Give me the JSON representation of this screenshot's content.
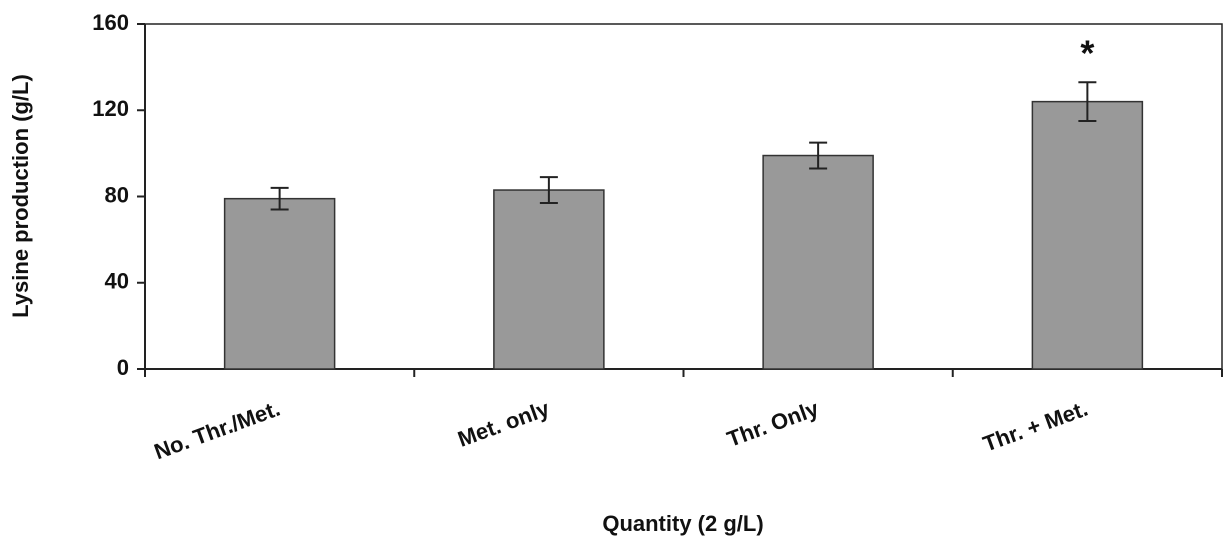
{
  "chart_data": {
    "type": "bar",
    "x_label": "Quantity (2 g/L)",
    "y_label": "Lysine production (g/L)",
    "categories": [
      "No. Thr./Met.",
      "Met. only",
      "Thr. Only",
      "Thr. + Met."
    ],
    "values": [
      79,
      83,
      99,
      124
    ],
    "errors": [
      5,
      6,
      6,
      9
    ],
    "color": "#999999",
    "ylim": [
      0,
      160
    ],
    "yticks": [
      0,
      40,
      80,
      120,
      160
    ],
    "annotations": [
      {
        "text": "*",
        "category": "Thr. + Met."
      }
    ]
  }
}
